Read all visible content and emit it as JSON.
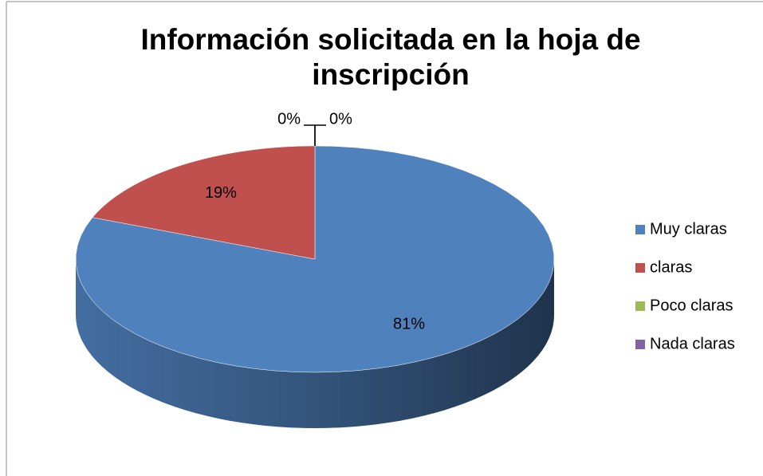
{
  "chart_data": {
    "type": "pie",
    "title": "Información solicitada en la hoja de inscripción",
    "categories": [
      "Muy claras",
      "claras",
      "Poco claras",
      "Nada claras"
    ],
    "values": [
      81,
      19,
      0,
      0
    ],
    "value_labels": [
      "81%",
      "19%",
      "0%",
      "0%"
    ],
    "colors": [
      "#4f81bd",
      "#c0504d",
      "#9bbb59",
      "#8064a2"
    ],
    "legend": "right"
  }
}
